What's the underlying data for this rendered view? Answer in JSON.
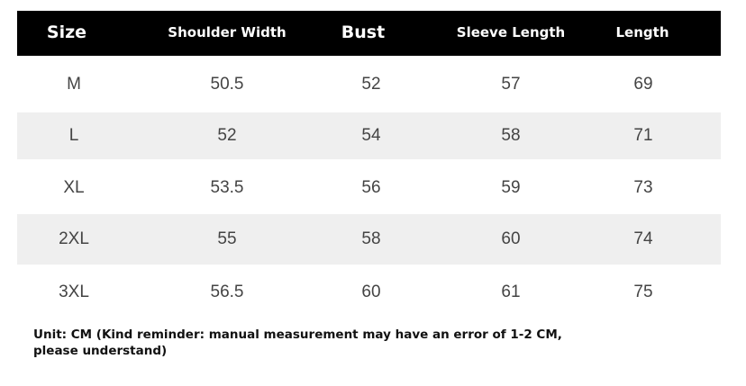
{
  "table": {
    "headers": [
      "Size",
      "Shoulder Width",
      "Bust",
      "Sleeve Length",
      "Length"
    ],
    "rows": [
      [
        "M",
        "50.5",
        "52",
        "57",
        "69"
      ],
      [
        "L",
        "52",
        "54",
        "58",
        "71"
      ],
      [
        "XL",
        "53.5",
        "56",
        "59",
        "73"
      ],
      [
        "2XL",
        "55",
        "58",
        "60",
        "74"
      ],
      [
        "3XL",
        "56.5",
        "60",
        "61",
        "75"
      ]
    ]
  },
  "note": "Unit: CM (Kind reminder: manual measurement may have an error of 1-2 CM, please understand)",
  "colors": {
    "header_bg": "#000000",
    "stripe": "#efefef",
    "text": "#444444"
  }
}
